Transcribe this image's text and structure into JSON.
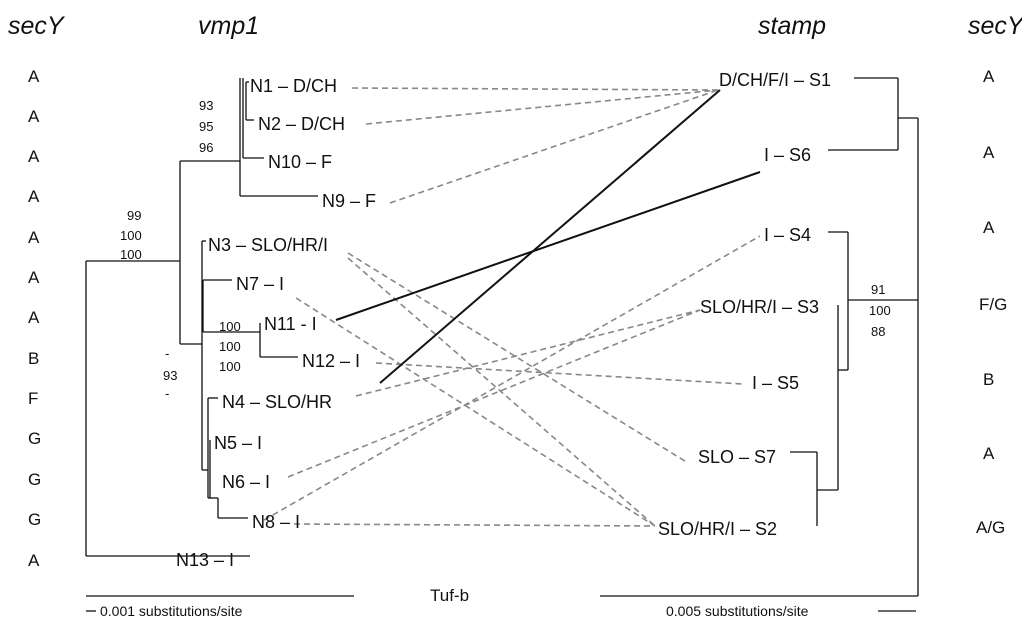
{
  "headers": {
    "secy_left": "secY",
    "vmp1": "vmp1",
    "stamp": "stamp",
    "secy_right": "secY"
  },
  "secy_left_alleles": [
    "A",
    "A",
    "A",
    "A",
    "A",
    "A",
    "A",
    "B",
    "F",
    "G",
    "G",
    "G",
    "A"
  ],
  "secy_right_alleles": [
    "A",
    "A",
    "A",
    "F/G",
    "B",
    "A",
    "A/G"
  ],
  "vmp1_tips": {
    "N1": "N1 – D/CH",
    "N2": "N2 – D/CH",
    "N10": "N10 – F",
    "N9": "N9 – F",
    "N3": "N3 – SLO/HR/I",
    "N7": "N7 – I",
    "N11": "N11 - I",
    "N12": "N12 – I",
    "N4": "N4 – SLO/HR",
    "N5": "N5 – I",
    "N6": "N6 – I",
    "N8": "N8 – I",
    "N13": "N13 – I"
  },
  "stamp_tips": {
    "S1": "D/CH/F/I – S1",
    "S6": "I – S6",
    "S4": "I – S4",
    "S3": "SLO/HR/I – S3",
    "S5": "I – S5",
    "S7": "SLO – S7",
    "S2": "SLO/HR/I – S2"
  },
  "bootstrap": {
    "n1_group": [
      "93",
      "95",
      "96"
    ],
    "root_clade": [
      "99",
      "100",
      "100"
    ],
    "n11_n12": [
      "100",
      "100",
      "100"
    ],
    "n4_group": [
      "-",
      "93",
      "-"
    ],
    "stamp_clade": [
      "91",
      "100",
      "88"
    ]
  },
  "links": [
    {
      "from": "N1",
      "to": "S1",
      "style": "dashed"
    },
    {
      "from": "N2",
      "to": "S1",
      "style": "dashed"
    },
    {
      "from": "N9",
      "to": "S1",
      "style": "dashed"
    },
    {
      "from": "N12",
      "to": "S1",
      "style": "solid"
    },
    {
      "from": "N11",
      "to": "S6",
      "style": "solid"
    },
    {
      "from": "N3",
      "to": "S7",
      "style": "dashed"
    },
    {
      "from": "N3",
      "to": "S2",
      "style": "dashed"
    },
    {
      "from": "N7",
      "to": "S2",
      "style": "dashed"
    },
    {
      "from": "N12",
      "to": "S5",
      "style": "dashed"
    },
    {
      "from": "N4",
      "to": "S3",
      "style": "dashed"
    },
    {
      "from": "N6",
      "to": "S3",
      "style": "dashed"
    },
    {
      "from": "N13",
      "to": "S4",
      "style": "dashed"
    },
    {
      "from": "N8",
      "to": "S2",
      "style": "dashed"
    }
  ],
  "scale_left": "0.001 substitutions/site",
  "scale_right": "0.005 substitutions/site",
  "tuf_label": "Tuf-b"
}
